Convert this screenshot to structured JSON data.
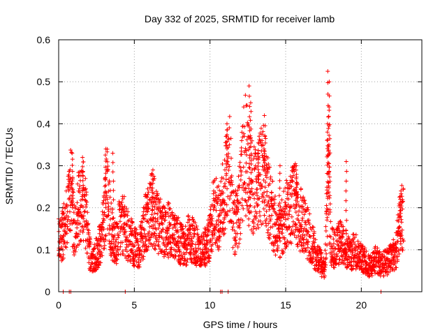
{
  "chart_data": {
    "type": "scatter",
    "title": "Day 332 of 2025, SRMTID for receiver lamb",
    "xlabel": "GPS time / hours",
    "ylabel": "SRMTID / TECUs",
    "xlim": [
      0,
      24
    ],
    "ylim": [
      0,
      0.6
    ],
    "x_ticks": [
      0,
      5,
      10,
      15,
      20
    ],
    "x_tick_labels": [
      "0",
      "5",
      "10",
      "15",
      "20"
    ],
    "y_ticks": [
      0,
      0.1,
      0.2,
      0.3,
      0.4,
      0.5,
      0.6
    ],
    "y_tick_labels": [
      "0",
      "0.1",
      "0.2",
      "0.3",
      "0.4",
      "0.5",
      "0.6"
    ],
    "grid": true,
    "marker": "+",
    "series": [
      {
        "name": "lamb",
        "color": "#ff0000",
        "envelope": {
          "x": [
            0.0,
            0.3,
            0.6,
            0.8,
            1.0,
            1.3,
            1.6,
            1.8,
            2.0,
            2.2,
            2.5,
            2.8,
            3.0,
            3.2,
            3.5,
            3.8,
            4.0,
            4.3,
            4.6,
            5.0,
            5.3,
            5.6,
            6.0,
            6.3,
            6.6,
            7.0,
            7.3,
            7.6,
            8.0,
            8.3,
            8.6,
            9.0,
            9.3,
            9.6,
            10.0,
            10.3,
            10.6,
            11.0,
            11.3,
            11.6,
            12.0,
            12.3,
            12.6,
            13.0,
            13.3,
            13.6,
            14.0,
            14.3,
            14.6,
            15.0,
            15.3,
            15.6,
            16.0,
            16.3,
            16.6,
            17.0,
            17.3,
            17.6,
            17.8,
            18.0,
            18.3,
            18.6,
            19.0,
            19.3,
            19.6,
            20.0,
            20.3,
            20.6,
            21.0,
            21.3,
            21.6,
            22.0,
            22.3,
            22.6,
            22.8
          ],
          "y": [
            0.12,
            0.14,
            0.18,
            0.25,
            0.15,
            0.2,
            0.22,
            0.18,
            0.1,
            0.08,
            0.09,
            0.12,
            0.18,
            0.24,
            0.14,
            0.11,
            0.15,
            0.16,
            0.13,
            0.11,
            0.1,
            0.14,
            0.2,
            0.19,
            0.16,
            0.14,
            0.15,
            0.13,
            0.12,
            0.1,
            0.13,
            0.12,
            0.09,
            0.1,
            0.13,
            0.2,
            0.17,
            0.25,
            0.3,
            0.15,
            0.22,
            0.34,
            0.27,
            0.24,
            0.27,
            0.29,
            0.2,
            0.16,
            0.14,
            0.18,
            0.2,
            0.22,
            0.17,
            0.15,
            0.13,
            0.09,
            0.07,
            0.05,
            0.28,
            0.11,
            0.1,
            0.12,
            0.1,
            0.09,
            0.1,
            0.08,
            0.07,
            0.06,
            0.08,
            0.06,
            0.07,
            0.08,
            0.1,
            0.18,
            0.17
          ]
        },
        "spikes": [
          {
            "x": 0.9,
            "y": 0.33
          },
          {
            "x": 1.6,
            "y": 0.32
          },
          {
            "x": 3.1,
            "y": 0.34
          },
          {
            "x": 3.6,
            "y": 0.33
          },
          {
            "x": 6.2,
            "y": 0.29
          },
          {
            "x": 11.1,
            "y": 0.4
          },
          {
            "x": 12.6,
            "y": 0.49
          },
          {
            "x": 12.7,
            "y": 0.45
          },
          {
            "x": 13.2,
            "y": 0.33
          },
          {
            "x": 13.6,
            "y": 0.34
          },
          {
            "x": 14.6,
            "y": 0.3
          },
          {
            "x": 15.7,
            "y": 0.3
          },
          {
            "x": 17.8,
            "y": 0.525
          },
          {
            "x": 17.9,
            "y": 0.5
          },
          {
            "x": 17.85,
            "y": 0.44
          },
          {
            "x": 17.75,
            "y": 0.4
          },
          {
            "x": 19.0,
            "y": 0.31
          },
          {
            "x": 22.6,
            "y": 0.24
          }
        ],
        "zero_markers": [
          0.3,
          0.7,
          0.8,
          4.4,
          10.7,
          10.8,
          11.2,
          21.3
        ]
      }
    ]
  }
}
